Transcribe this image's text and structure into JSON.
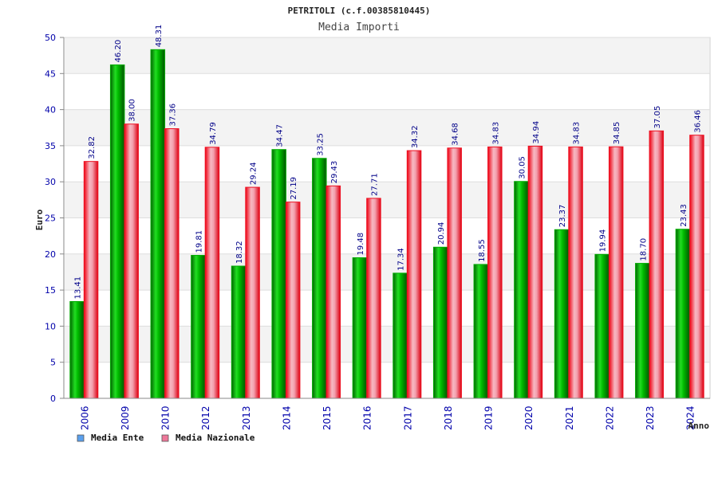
{
  "chart_data": {
    "type": "bar",
    "title": "PETRITOLI (c.f.00385810445)",
    "subtitle": "Media Importi",
    "xlabel": "Anno",
    "ylabel": "Euro",
    "ylim": [
      0,
      50
    ],
    "yticks": [
      "0",
      "5",
      "10",
      "15",
      "20",
      "25",
      "30",
      "35",
      "40",
      "45",
      "50"
    ],
    "grid": true,
    "legend_position": "bottom-left",
    "categories": [
      "2006",
      "2009",
      "2010",
      "2012",
      "2013",
      "2014",
      "2015",
      "2016",
      "2017",
      "2018",
      "2019",
      "2020",
      "2021",
      "2022",
      "2023",
      "2024"
    ],
    "series": [
      {
        "name": "Media Ente",
        "color": "#00aa00",
        "legend_color": "#5aa0ee",
        "values": [
          13.41,
          46.2,
          48.31,
          19.81,
          18.32,
          34.47,
          33.25,
          19.48,
          17.34,
          20.94,
          18.55,
          30.05,
          23.37,
          19.94,
          18.7,
          23.43
        ],
        "labels": [
          "13.41",
          "46.20",
          "48.31",
          "19.81",
          "18.32",
          "34.47",
          "33.25",
          "19.48",
          "17.34",
          "20.94",
          "18.55",
          "30.05",
          "23.37",
          "19.94",
          "18.70",
          "23.43"
        ]
      },
      {
        "name": "Media Nazionale",
        "color": "#ee1122",
        "legend_color": "#ee7799",
        "values": [
          32.82,
          38.0,
          37.36,
          34.79,
          29.24,
          27.19,
          29.43,
          27.71,
          34.32,
          34.68,
          34.83,
          34.94,
          34.83,
          34.85,
          37.05,
          36.46
        ],
        "labels": [
          "32.82",
          "38.00",
          "37.36",
          "34.79",
          "29.24",
          "27.19",
          "29.43",
          "27.71",
          "34.32",
          "34.68",
          "34.83",
          "34.94",
          "34.83",
          "34.85",
          "37.05",
          "36.46"
        ]
      }
    ]
  }
}
